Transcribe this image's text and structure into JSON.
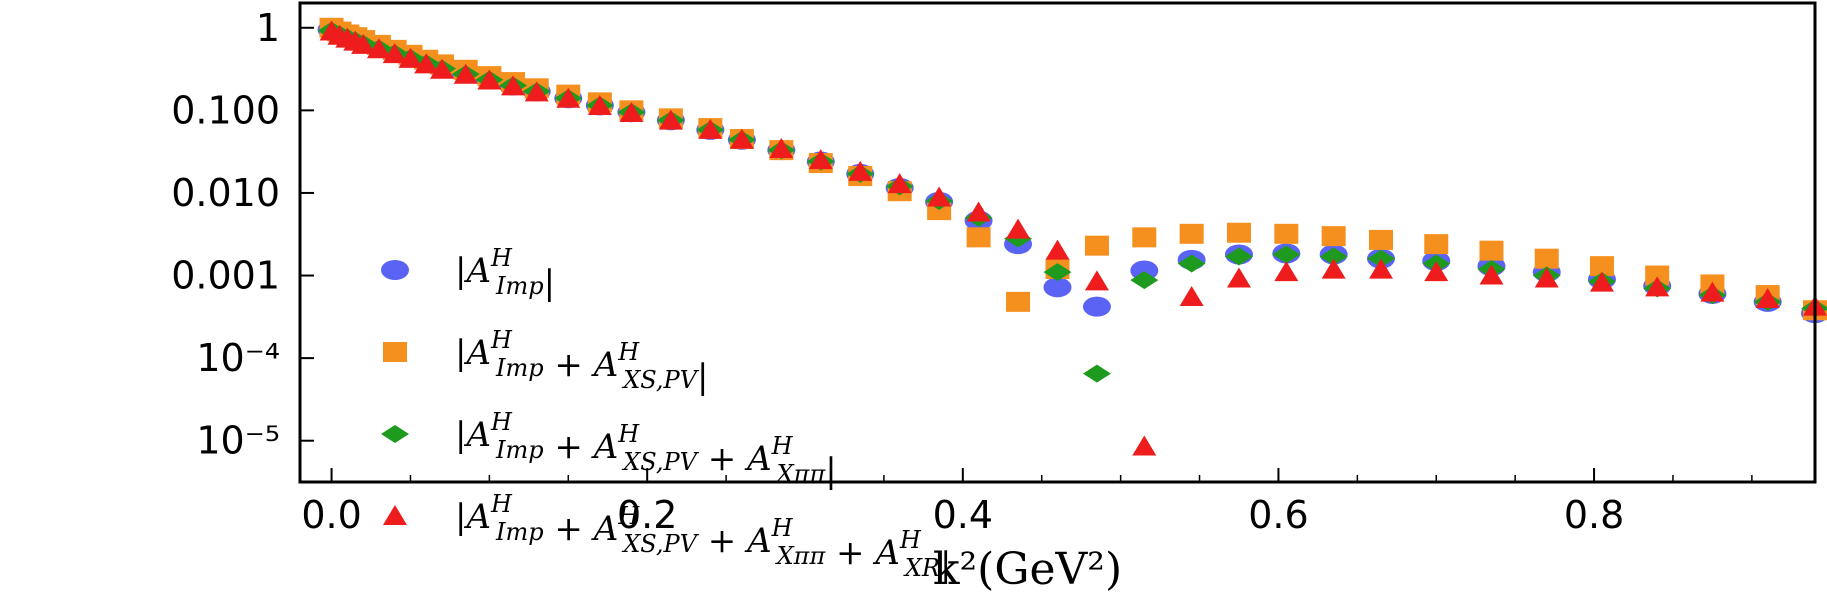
{
  "chart_data": {
    "type": "scatter",
    "xlabel": "k²(GeV²)",
    "ylabel": "",
    "xlim": [
      -0.02,
      0.94
    ],
    "ylim_log10": [
      -5.5,
      0.3
    ],
    "y_scale": "log",
    "grid": false,
    "legend_position": "bottom-left",
    "x_ticks": [
      0.0,
      0.2,
      0.4,
      0.6,
      0.8
    ],
    "x_tick_labels": [
      "0.0",
      "0.2",
      "0.4",
      "0.6",
      "0.8"
    ],
    "y_ticks": [
      1,
      0.1,
      0.01,
      0.001,
      0.0001,
      1e-05
    ],
    "y_tick_labels": [
      "1",
      "0.100",
      "0.010",
      "0.001",
      "10⁻⁴",
      "10⁻⁵"
    ],
    "series": [
      {
        "name": "|A^H_Imp|",
        "marker": "ellipse",
        "color": "#5b63f5",
        "points": [
          [
            0.0,
            0.95
          ],
          [
            0.005,
            0.85
          ],
          [
            0.01,
            0.78
          ],
          [
            0.015,
            0.72
          ],
          [
            0.02,
            0.66
          ],
          [
            0.03,
            0.58
          ],
          [
            0.04,
            0.5
          ],
          [
            0.05,
            0.44
          ],
          [
            0.06,
            0.38
          ],
          [
            0.07,
            0.33
          ],
          [
            0.085,
            0.28
          ],
          [
            0.1,
            0.24
          ],
          [
            0.115,
            0.2
          ],
          [
            0.13,
            0.17
          ],
          [
            0.15,
            0.14
          ],
          [
            0.17,
            0.115
          ],
          [
            0.19,
            0.095
          ],
          [
            0.215,
            0.076
          ],
          [
            0.24,
            0.058
          ],
          [
            0.26,
            0.044
          ],
          [
            0.285,
            0.033
          ],
          [
            0.31,
            0.024
          ],
          [
            0.335,
            0.017
          ],
          [
            0.36,
            0.0115
          ],
          [
            0.385,
            0.0078
          ],
          [
            0.41,
            0.0046
          ],
          [
            0.435,
            0.0024
          ],
          [
            0.46,
            0.00072
          ],
          [
            0.485,
            0.00042
          ],
          [
            0.515,
            0.00115
          ],
          [
            0.545,
            0.00155
          ],
          [
            0.575,
            0.0018
          ],
          [
            0.605,
            0.00185
          ],
          [
            0.635,
            0.0018
          ],
          [
            0.665,
            0.0016
          ],
          [
            0.7,
            0.0015
          ],
          [
            0.735,
            0.0013
          ],
          [
            0.77,
            0.0011
          ],
          [
            0.805,
            0.0009
          ],
          [
            0.84,
            0.00075
          ],
          [
            0.875,
            0.0006
          ],
          [
            0.91,
            0.00048
          ],
          [
            0.94,
            0.00035
          ]
        ]
      },
      {
        "name": "|A^H_Imp + A^H_XS,PV|",
        "marker": "square",
        "color": "#f5901e",
        "points": [
          [
            0.0,
            1.0
          ],
          [
            0.005,
            0.9
          ],
          [
            0.01,
            0.83
          ],
          [
            0.015,
            0.77
          ],
          [
            0.02,
            0.71
          ],
          [
            0.03,
            0.62
          ],
          [
            0.04,
            0.54
          ],
          [
            0.05,
            0.47
          ],
          [
            0.06,
            0.41
          ],
          [
            0.07,
            0.36
          ],
          [
            0.085,
            0.31
          ],
          [
            0.1,
            0.26
          ],
          [
            0.115,
            0.22
          ],
          [
            0.13,
            0.185
          ],
          [
            0.15,
            0.155
          ],
          [
            0.17,
            0.125
          ],
          [
            0.19,
            0.1
          ],
          [
            0.215,
            0.08
          ],
          [
            0.24,
            0.061
          ],
          [
            0.26,
            0.045
          ],
          [
            0.285,
            0.033
          ],
          [
            0.31,
            0.023
          ],
          [
            0.335,
            0.016
          ],
          [
            0.36,
            0.0105
          ],
          [
            0.385,
            0.0062
          ],
          [
            0.41,
            0.0029
          ],
          [
            0.435,
            0.00048
          ],
          [
            0.46,
            0.0012
          ],
          [
            0.485,
            0.0023
          ],
          [
            0.515,
            0.0029
          ],
          [
            0.545,
            0.0032
          ],
          [
            0.575,
            0.0033
          ],
          [
            0.605,
            0.0032
          ],
          [
            0.635,
            0.003
          ],
          [
            0.665,
            0.0027
          ],
          [
            0.7,
            0.0024
          ],
          [
            0.735,
            0.002
          ],
          [
            0.77,
            0.0016
          ],
          [
            0.805,
            0.0013
          ],
          [
            0.84,
            0.001
          ],
          [
            0.875,
            0.00078
          ],
          [
            0.91,
            0.00058
          ],
          [
            0.94,
            0.00038
          ]
        ]
      },
      {
        "name": "|A^H_Imp + A^H_XS,PV + A^H_Xππ|",
        "marker": "diamond",
        "color": "#1e9a1e",
        "points": [
          [
            0.0,
            0.92
          ],
          [
            0.005,
            0.83
          ],
          [
            0.01,
            0.76
          ],
          [
            0.015,
            0.7
          ],
          [
            0.02,
            0.64
          ],
          [
            0.03,
            0.56
          ],
          [
            0.04,
            0.49
          ],
          [
            0.05,
            0.43
          ],
          [
            0.06,
            0.37
          ],
          [
            0.07,
            0.32
          ],
          [
            0.085,
            0.275
          ],
          [
            0.1,
            0.235
          ],
          [
            0.115,
            0.2
          ],
          [
            0.13,
            0.17
          ],
          [
            0.15,
            0.14
          ],
          [
            0.17,
            0.115
          ],
          [
            0.19,
            0.095
          ],
          [
            0.215,
            0.076
          ],
          [
            0.24,
            0.058
          ],
          [
            0.26,
            0.044
          ],
          [
            0.285,
            0.033
          ],
          [
            0.31,
            0.024
          ],
          [
            0.335,
            0.017
          ],
          [
            0.36,
            0.012
          ],
          [
            0.385,
            0.008
          ],
          [
            0.41,
            0.005
          ],
          [
            0.435,
            0.0028
          ],
          [
            0.46,
            0.0011
          ],
          [
            0.485,
            6.5e-05
          ],
          [
            0.515,
            0.00088
          ],
          [
            0.545,
            0.0014
          ],
          [
            0.575,
            0.0017
          ],
          [
            0.605,
            0.0018
          ],
          [
            0.635,
            0.0017
          ],
          [
            0.665,
            0.0016
          ],
          [
            0.7,
            0.0014
          ],
          [
            0.735,
            0.0012
          ],
          [
            0.77,
            0.001
          ],
          [
            0.805,
            0.00085
          ],
          [
            0.84,
            0.0007
          ],
          [
            0.875,
            0.00058
          ],
          [
            0.91,
            0.00048
          ],
          [
            0.94,
            0.0004
          ]
        ]
      },
      {
        "name": "|A^H_Imp + A^H_XS,PV + A^H_Xππ + A^H_XR|",
        "marker": "triangle",
        "color": "#ee1c1c",
        "points": [
          [
            0.0,
            0.9
          ],
          [
            0.005,
            0.8
          ],
          [
            0.01,
            0.74
          ],
          [
            0.015,
            0.68
          ],
          [
            0.02,
            0.62
          ],
          [
            0.03,
            0.55
          ],
          [
            0.04,
            0.48
          ],
          [
            0.05,
            0.42
          ],
          [
            0.06,
            0.36
          ],
          [
            0.07,
            0.31
          ],
          [
            0.085,
            0.27
          ],
          [
            0.1,
            0.23
          ],
          [
            0.115,
            0.195
          ],
          [
            0.13,
            0.165
          ],
          [
            0.15,
            0.138
          ],
          [
            0.17,
            0.113
          ],
          [
            0.19,
            0.093
          ],
          [
            0.215,
            0.075
          ],
          [
            0.24,
            0.058
          ],
          [
            0.26,
            0.044
          ],
          [
            0.285,
            0.034
          ],
          [
            0.31,
            0.025
          ],
          [
            0.335,
            0.018
          ],
          [
            0.36,
            0.0128
          ],
          [
            0.385,
            0.0088
          ],
          [
            0.41,
            0.0058
          ],
          [
            0.435,
            0.0036
          ],
          [
            0.46,
            0.002
          ],
          [
            0.485,
            0.00085
          ],
          [
            0.515,
            8.5e-06
          ],
          [
            0.545,
            0.00055
          ],
          [
            0.575,
            0.00092
          ],
          [
            0.605,
            0.0011
          ],
          [
            0.635,
            0.00118
          ],
          [
            0.665,
            0.00118
          ],
          [
            0.7,
            0.0011
          ],
          [
            0.735,
            0.001
          ],
          [
            0.77,
            0.00092
          ],
          [
            0.805,
            0.00082
          ],
          [
            0.84,
            0.00072
          ],
          [
            0.875,
            0.00062
          ],
          [
            0.91,
            0.00052
          ],
          [
            0.94,
            0.00042
          ]
        ]
      }
    ]
  }
}
